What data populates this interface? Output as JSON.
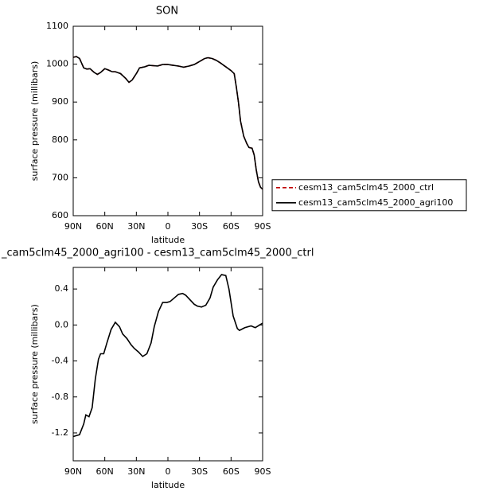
{
  "chart_data": [
    {
      "type": "line",
      "title": "SON",
      "xlabel": "latitude",
      "ylabel": "surface pressure (millibars)",
      "x": [
        90,
        87,
        84,
        80,
        77,
        74,
        70,
        67,
        64,
        60,
        57,
        53,
        50,
        45,
        40,
        37,
        34,
        30,
        27,
        22,
        18,
        14,
        10,
        5,
        0,
        -5,
        -10,
        -15,
        -20,
        -25,
        -30,
        -35,
        -38,
        -42,
        -46,
        -50,
        -55,
        -60,
        -63,
        -65,
        -67,
        -69,
        -72,
        -75,
        -77,
        -80,
        -82,
        -84,
        -86,
        -88,
        -90
      ],
      "series": [
        {
          "name": "cesm13_cam5clm45_2000_ctrl",
          "color": "#c00000",
          "line_style": "dashed",
          "values": [
            1018,
            1020,
            1015,
            990,
            987,
            988,
            978,
            973,
            978,
            988,
            985,
            980,
            980,
            975,
            962,
            952,
            958,
            975,
            990,
            993,
            997,
            996,
            995,
            999,
            999,
            997,
            995,
            992,
            995,
            999,
            1007,
            1015,
            1017,
            1015,
            1010,
            1003,
            993,
            983,
            975,
            940,
            900,
            850,
            810,
            790,
            780,
            778,
            760,
            720,
            690,
            675,
            670
          ]
        },
        {
          "name": "cesm13_cam5clm45_2000_agri100",
          "color": "#000000",
          "line_style": "solid",
          "values": [
            1018,
            1020,
            1015,
            990,
            987,
            988,
            978,
            973,
            978,
            988,
            985,
            980,
            980,
            975,
            962,
            952,
            958,
            975,
            990,
            993,
            997,
            996,
            995,
            999,
            999,
            997,
            995,
            992,
            995,
            999,
            1007,
            1015,
            1017,
            1015,
            1010,
            1003,
            993,
            983,
            975,
            940,
            900,
            850,
            810,
            790,
            780,
            778,
            760,
            720,
            690,
            675,
            670
          ]
        }
      ],
      "xlim": [
        90,
        -90
      ],
      "xticks": [
        {
          "value": 90,
          "label": "90N"
        },
        {
          "value": 60,
          "label": "60N"
        },
        {
          "value": 30,
          "label": "30N"
        },
        0,
        {
          "value": -30,
          "label": "30S"
        },
        {
          "value": -60,
          "label": "60S"
        },
        {
          "value": -90,
          "label": "90S"
        }
      ],
      "ylim": [
        600,
        1100
      ],
      "yticks": [
        600,
        700,
        800,
        900,
        1000,
        1100
      ],
      "legend": "right"
    },
    {
      "type": "line",
      "title": "_cam5clm45_2000_agri100 - cesm13_cam5clm45_2000_ctrl",
      "xlabel": "latitude",
      "ylabel": "surface pressure (millibars)",
      "x": [
        90,
        84,
        80,
        78,
        75,
        72,
        69,
        66,
        64,
        61,
        58,
        54,
        50,
        46,
        43,
        39,
        35,
        32,
        28,
        24,
        20,
        16,
        13,
        9,
        5,
        1,
        -2,
        -6,
        -10,
        -14,
        -17,
        -21,
        -25,
        -28,
        -32,
        -36,
        -40,
        -43,
        -47,
        -51,
        -55,
        -58,
        -62,
        -66,
        -68,
        -73,
        -79,
        -83,
        -90
      ],
      "values": [
        -1.24,
        -1.22,
        -1.1,
        -1.0,
        -1.02,
        -0.92,
        -0.6,
        -0.38,
        -0.32,
        -0.32,
        -0.2,
        -0.05,
        0.03,
        -0.02,
        -0.1,
        -0.15,
        -0.22,
        -0.26,
        -0.3,
        -0.35,
        -0.32,
        -0.2,
        -0.02,
        0.15,
        0.25,
        0.25,
        0.26,
        0.3,
        0.34,
        0.35,
        0.33,
        0.28,
        0.23,
        0.21,
        0.2,
        0.22,
        0.3,
        0.42,
        0.5,
        0.56,
        0.55,
        0.4,
        0.1,
        -0.04,
        -0.06,
        -0.03,
        -0.01,
        -0.03,
        0.02
      ],
      "color": "#000000",
      "xlim": [
        90,
        -90
      ],
      "xticks": [
        {
          "value": 90,
          "label": "90N"
        },
        {
          "value": 60,
          "label": "60N"
        },
        {
          "value": 30,
          "label": "30N"
        },
        0,
        {
          "value": -30,
          "label": "30S"
        },
        {
          "value": -60,
          "label": "60S"
        },
        {
          "value": -90,
          "label": "90S"
        }
      ],
      "ylim": [
        -1.51,
        0.64
      ],
      "yticks": [
        -1.2,
        -0.8,
        -0.4,
        {
          "value": 0,
          "label": "0.0"
        },
        0.4
      ]
    }
  ]
}
